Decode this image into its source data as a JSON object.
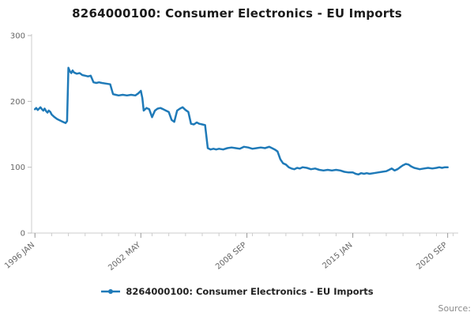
{
  "title": "8264000100: Consumer Electronics - EU Imports",
  "legend": {
    "label": "8264000100: Consumer Electronics - EU Imports"
  },
  "source_label": "Source:",
  "chart_data": {
    "type": "line",
    "title": "8264000100: Consumer Electronics - EU Imports",
    "xlabel": "",
    "ylabel": "",
    "ylim": [
      0,
      300
    ],
    "xlim": [
      1995.8,
      2021.3
    ],
    "grid": false,
    "legend_position": "bottom",
    "y_ticks": [
      0,
      100,
      200,
      300
    ],
    "x_ticks": [
      {
        "value": 1996.0,
        "label": "1996 JAN"
      },
      {
        "value": 2002.33,
        "label": "2002 MAY"
      },
      {
        "value": 2008.67,
        "label": "2008 SEP"
      },
      {
        "value": 2015.0,
        "label": "2015 JAN"
      },
      {
        "value": 2020.67,
        "label": "2020 SEP"
      }
    ],
    "series": [
      {
        "name": "8264000100: Consumer Electronics - EU Imports",
        "color": "#1f7ab8",
        "points": [
          [
            1996.0,
            188
          ],
          [
            1996.08,
            190
          ],
          [
            1996.17,
            187
          ],
          [
            1996.25,
            189
          ],
          [
            1996.33,
            191
          ],
          [
            1996.42,
            188
          ],
          [
            1996.5,
            186
          ],
          [
            1996.58,
            189
          ],
          [
            1996.67,
            185
          ],
          [
            1996.75,
            183
          ],
          [
            1996.83,
            186
          ],
          [
            1996.92,
            184
          ],
          [
            1997.0,
            180
          ],
          [
            1997.17,
            176
          ],
          [
            1997.33,
            173
          ],
          [
            1997.5,
            171
          ],
          [
            1997.67,
            169
          ],
          [
            1997.83,
            167
          ],
          [
            1997.92,
            170
          ],
          [
            1998.0,
            251
          ],
          [
            1998.08,
            246
          ],
          [
            1998.17,
            243
          ],
          [
            1998.25,
            247
          ],
          [
            1998.33,
            244
          ],
          [
            1998.5,
            242
          ],
          [
            1998.67,
            243
          ],
          [
            1998.83,
            240
          ],
          [
            1999.0,
            239
          ],
          [
            1999.17,
            238
          ],
          [
            1999.33,
            239
          ],
          [
            1999.5,
            229
          ],
          [
            1999.67,
            228
          ],
          [
            1999.83,
            229
          ],
          [
            2000.0,
            228
          ],
          [
            2000.25,
            227
          ],
          [
            2000.5,
            226
          ],
          [
            2000.67,
            211
          ],
          [
            2000.83,
            210
          ],
          [
            2001.0,
            209
          ],
          [
            2001.25,
            210
          ],
          [
            2001.5,
            209
          ],
          [
            2001.75,
            210
          ],
          [
            2002.0,
            209
          ],
          [
            2002.17,
            212
          ],
          [
            2002.33,
            216
          ],
          [
            2002.42,
            205
          ],
          [
            2002.5,
            186
          ],
          [
            2002.67,
            190
          ],
          [
            2002.83,
            188
          ],
          [
            2003.0,
            176
          ],
          [
            2003.17,
            186
          ],
          [
            2003.33,
            189
          ],
          [
            2003.5,
            190
          ],
          [
            2003.67,
            188
          ],
          [
            2003.83,
            186
          ],
          [
            2004.0,
            184
          ],
          [
            2004.17,
            172
          ],
          [
            2004.33,
            169
          ],
          [
            2004.5,
            186
          ],
          [
            2004.67,
            189
          ],
          [
            2004.83,
            191
          ],
          [
            2005.0,
            187
          ],
          [
            2005.17,
            184
          ],
          [
            2005.33,
            166
          ],
          [
            2005.5,
            165
          ],
          [
            2005.67,
            168
          ],
          [
            2005.83,
            166
          ],
          [
            2006.0,
            165
          ],
          [
            2006.17,
            164
          ],
          [
            2006.33,
            129
          ],
          [
            2006.5,
            127
          ],
          [
            2006.67,
            128
          ],
          [
            2006.83,
            127
          ],
          [
            2007.0,
            128
          ],
          [
            2007.25,
            127
          ],
          [
            2007.5,
            129
          ],
          [
            2007.75,
            130
          ],
          [
            2008.0,
            129
          ],
          [
            2008.25,
            128
          ],
          [
            2008.5,
            131
          ],
          [
            2008.75,
            130
          ],
          [
            2009.0,
            128
          ],
          [
            2009.25,
            129
          ],
          [
            2009.5,
            130
          ],
          [
            2009.75,
            129
          ],
          [
            2010.0,
            131
          ],
          [
            2010.17,
            129
          ],
          [
            2010.33,
            127
          ],
          [
            2010.5,
            124
          ],
          [
            2010.67,
            112
          ],
          [
            2010.83,
            106
          ],
          [
            2011.0,
            104
          ],
          [
            2011.17,
            100
          ],
          [
            2011.33,
            98
          ],
          [
            2011.5,
            97
          ],
          [
            2011.67,
            99
          ],
          [
            2011.83,
            98
          ],
          [
            2012.0,
            100
          ],
          [
            2012.25,
            99
          ],
          [
            2012.5,
            97
          ],
          [
            2012.75,
            98
          ],
          [
            2013.0,
            96
          ],
          [
            2013.25,
            95
          ],
          [
            2013.5,
            96
          ],
          [
            2013.75,
            95
          ],
          [
            2014.0,
            96
          ],
          [
            2014.25,
            95
          ],
          [
            2014.5,
            93
          ],
          [
            2014.75,
            92
          ],
          [
            2015.0,
            92
          ],
          [
            2015.17,
            90
          ],
          [
            2015.33,
            89
          ],
          [
            2015.5,
            91
          ],
          [
            2015.67,
            90
          ],
          [
            2015.83,
            91
          ],
          [
            2016.0,
            90
          ],
          [
            2016.25,
            91
          ],
          [
            2016.5,
            92
          ],
          [
            2016.75,
            93
          ],
          [
            2017.0,
            94
          ],
          [
            2017.17,
            96
          ],
          [
            2017.33,
            98
          ],
          [
            2017.5,
            95
          ],
          [
            2017.67,
            97
          ],
          [
            2017.83,
            100
          ],
          [
            2018.0,
            103
          ],
          [
            2018.17,
            105
          ],
          [
            2018.33,
            104
          ],
          [
            2018.5,
            101
          ],
          [
            2018.67,
            99
          ],
          [
            2018.83,
            98
          ],
          [
            2019.0,
            97
          ],
          [
            2019.25,
            98
          ],
          [
            2019.5,
            99
          ],
          [
            2019.75,
            98
          ],
          [
            2020.0,
            99
          ],
          [
            2020.17,
            100
          ],
          [
            2020.33,
            99
          ],
          [
            2020.5,
            100
          ],
          [
            2020.67,
            100
          ]
        ]
      }
    ]
  }
}
